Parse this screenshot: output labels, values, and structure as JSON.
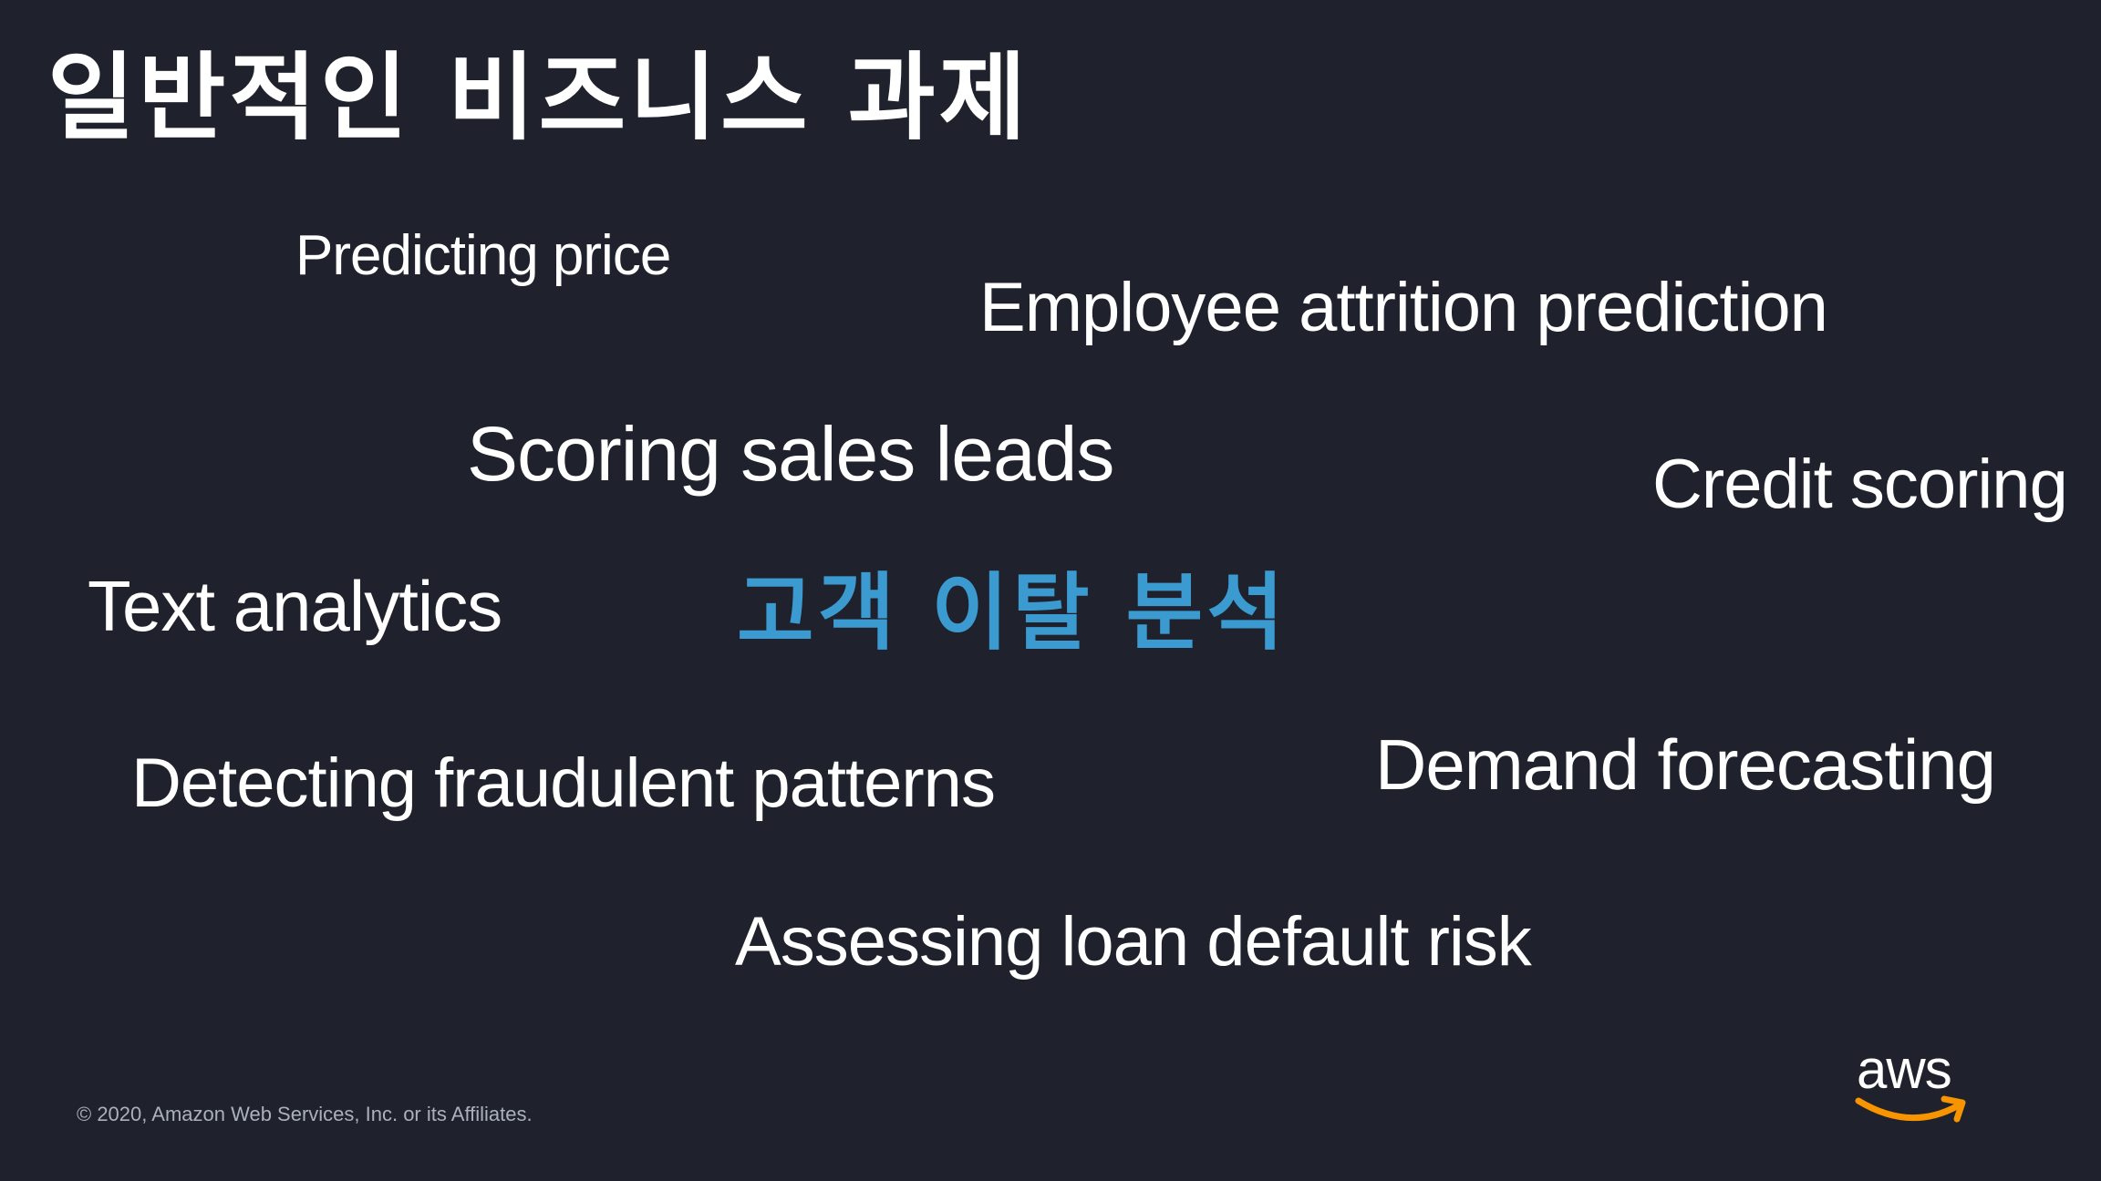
{
  "slide": {
    "title": "일반적인 비즈니스 과제",
    "highlight": "고객 이탈 분석",
    "terms": {
      "predicting_price": "Predicting price",
      "employee_attrition": "Employee attrition prediction",
      "scoring_sales_leads": "Scoring sales leads",
      "credit_scoring": "Credit scoring",
      "text_analytics": "Text analytics",
      "detecting_fraud": "Detecting fraudulent patterns",
      "demand_forecasting": "Demand forecasting",
      "loan_default": "Assessing loan default risk"
    },
    "footer": {
      "copyright": "© 2020, Amazon Web Services, Inc. or its Affiliates.",
      "logo_text": "aws"
    }
  },
  "colors": {
    "background": "#1f222d",
    "text": "#ffffff",
    "highlight": "#3b9bd0",
    "logo_smile": "#f79400"
  },
  "icons": {
    "logo": "aws-logo-icon"
  }
}
